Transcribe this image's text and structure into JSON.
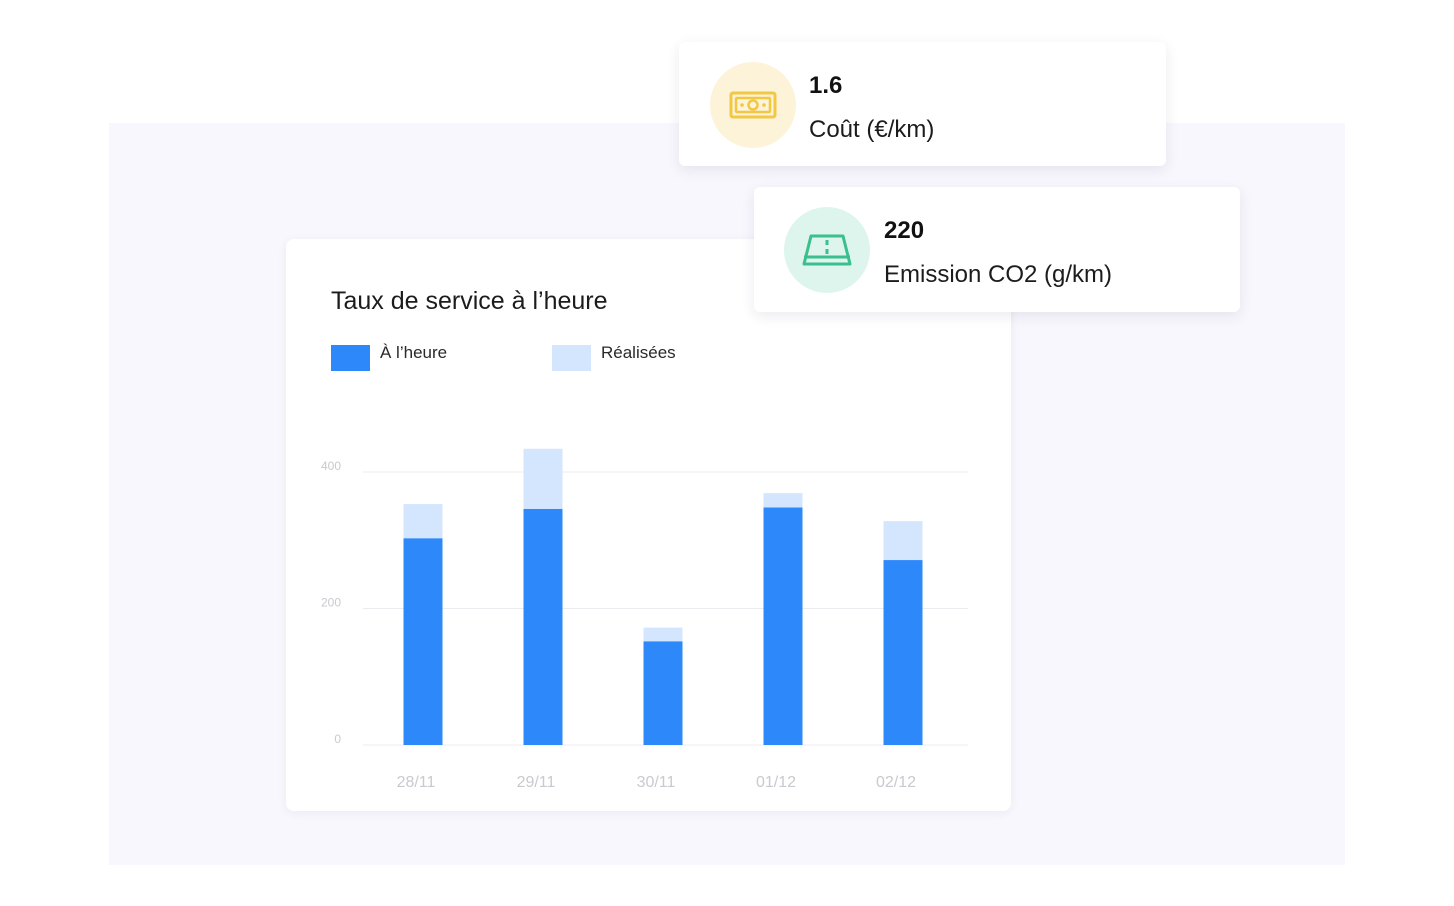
{
  "kpis": [
    {
      "value": "1.6",
      "label": "Coût (€/km)",
      "icon": "banknote-icon",
      "color": "#f2c744"
    },
    {
      "value": "220",
      "label": "Emission CO2 (g/km)",
      "icon": "road-icon",
      "color": "#3cbf8f"
    }
  ],
  "chart_data": {
    "type": "bar",
    "stacked": true,
    "title": "Taux de service à l’heure",
    "categories": [
      "28/11",
      "29/11",
      "30/11",
      "01/12",
      "02/12"
    ],
    "series": [
      {
        "name": "À l’heure",
        "color": "#2d89fa",
        "values": [
          303,
          346,
          152,
          348,
          271
        ]
      },
      {
        "name": "Réalisées",
        "color": "#d4e6fd",
        "values": [
          50,
          88,
          20,
          21,
          57
        ]
      }
    ],
    "y_ticks": [
      "0",
      "200",
      "400"
    ],
    "ylim": [
      0,
      400
    ],
    "grid": true,
    "legend_position": "top-left"
  }
}
